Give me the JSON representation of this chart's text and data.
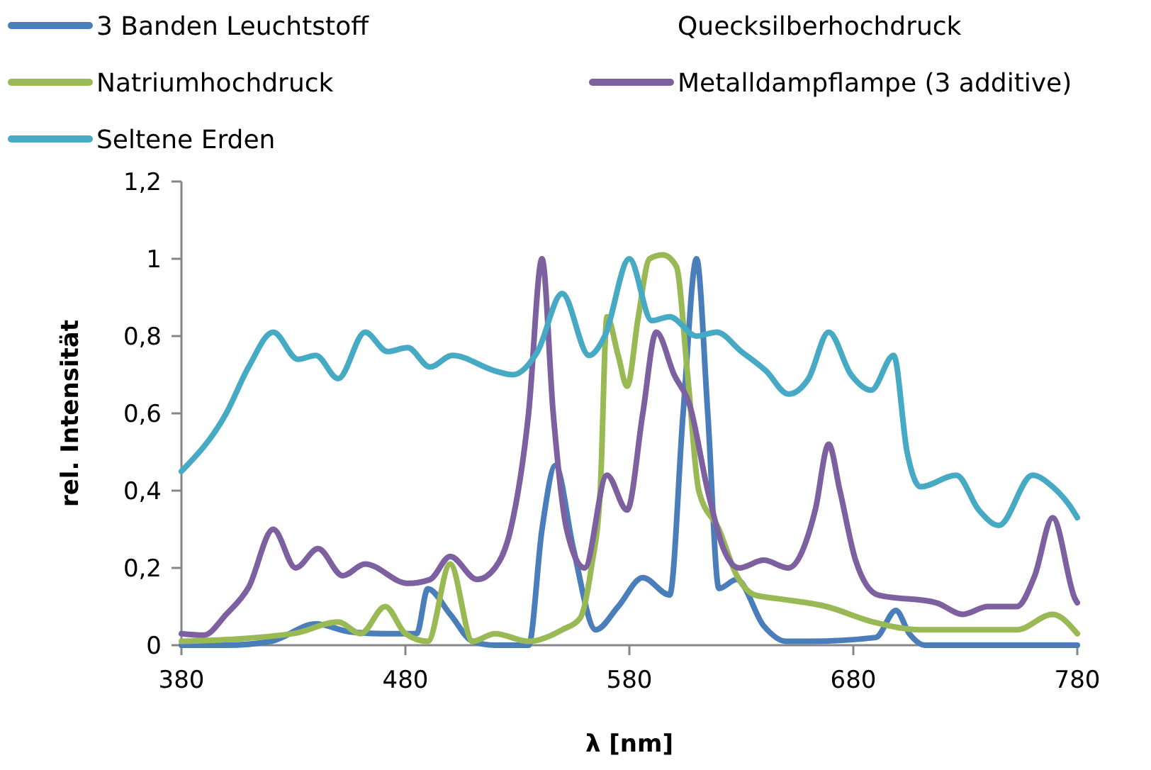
{
  "chart_data": {
    "type": "line",
    "xlabel": "λ [nm]",
    "ylabel": "rel. Intensität",
    "xlim": [
      380,
      780
    ],
    "xticks": [
      380,
      480,
      580,
      680,
      780
    ],
    "ylim": [
      0,
      1.2
    ],
    "yticks": [
      0,
      {
        "value": 0.2,
        "label": "0,2"
      },
      {
        "value": 0.4,
        "label": "0,4"
      },
      {
        "value": 0.6,
        "label": "0,6"
      },
      {
        "value": 0.8,
        "label": "0,8"
      },
      1,
      {
        "value": 1.2,
        "label": "1,2"
      }
    ],
    "grid": false,
    "legend": "top",
    "marker": "none",
    "line_style": "solid",
    "series": [
      {
        "name": "3 Banden Leuchtstoff",
        "color": "#4a7ebb",
        "x": [
          380,
          400,
          420,
          440,
          455,
          470,
          485,
          490,
          500,
          510,
          520,
          535,
          541,
          547,
          555,
          565,
          575,
          586,
          598,
          604,
          610,
          615,
          620,
          628,
          640,
          650,
          660,
          690,
          699,
          705,
          712,
          780
        ],
        "values": [
          0,
          0,
          0.01,
          0.055,
          0.035,
          0.03,
          0.03,
          0.146,
          0.08,
          0.01,
          0,
          0,
          0.3,
          0.465,
          0.25,
          0.04,
          0.1,
          0.175,
          0.13,
          0.6,
          1,
          0.6,
          0.147,
          0.17,
          0.05,
          0.01,
          0.01,
          0.02,
          0.09,
          0.03,
          0,
          0
        ]
      },
      {
        "name": "Quecksilberhochdruck"
      },
      {
        "name": "Natriumhochdruck",
        "color": "#98b954",
        "x": [
          380,
          430,
          450,
          460,
          471,
          480,
          490,
          500,
          510,
          520,
          535,
          550,
          558,
          563,
          567,
          570,
          575,
          579,
          584,
          589,
          595,
          601,
          606,
          611,
          620,
          628,
          636,
          647,
          668,
          689,
          710,
          753,
          769,
          780
        ],
        "values": [
          0.01,
          0.03,
          0.06,
          0.03,
          0.1,
          0.03,
          0.01,
          0.21,
          0.01,
          0.03,
          0.01,
          0.04,
          0.07,
          0.2,
          0.4,
          0.85,
          0.75,
          0.67,
          0.85,
          1,
          1.01,
          0.98,
          0.7,
          0.4,
          0.3,
          0.18,
          0.13,
          0.12,
          0.1,
          0.06,
          0.04,
          0.04,
          0.08,
          0.03
        ]
      },
      {
        "name": "Metalldampflampe (3 additive)",
        "color": "#7d60a0",
        "x": [
          380,
          390,
          400,
          410,
          421,
          431,
          441,
          452,
          462,
          481,
          491,
          500,
          512,
          520,
          527,
          535,
          541,
          546,
          552,
          560,
          570,
          579,
          586,
          592,
          600,
          607,
          615,
          622,
          629,
          640,
          651,
          663,
          669,
          674,
          681,
          691,
          717,
          729,
          740,
          753,
          761,
          769,
          779,
          780
        ],
        "values": [
          0.03,
          0.026,
          0.08,
          0.15,
          0.3,
          0.2,
          0.25,
          0.18,
          0.21,
          0.16,
          0.17,
          0.23,
          0.17,
          0.2,
          0.3,
          0.6,
          1,
          0.6,
          0.3,
          0.2,
          0.44,
          0.35,
          0.6,
          0.81,
          0.7,
          0.62,
          0.4,
          0.25,
          0.2,
          0.22,
          0.2,
          0.35,
          0.52,
          0.4,
          0.22,
          0.13,
          0.11,
          0.08,
          0.1,
          0.1,
          0.18,
          0.33,
          0.12,
          0.11
        ]
      },
      {
        "name": "Seltene Erden",
        "color": "#46aac5",
        "x": [
          380,
          400,
          410,
          421,
          432,
          440,
          450,
          462,
          472,
          481,
          491,
          501,
          520,
          528,
          539,
          550,
          562,
          569,
          580,
          590,
          598,
          610,
          619,
          630,
          641,
          651,
          660,
          669,
          679,
          688,
          698,
          704,
          710,
          726,
          736,
          745,
          760,
          769,
          779,
          780
        ],
        "values": [
          0.45,
          0.6,
          0.72,
          0.81,
          0.74,
          0.75,
          0.69,
          0.81,
          0.76,
          0.77,
          0.72,
          0.75,
          0.71,
          0.7,
          0.76,
          0.91,
          0.75,
          0.8,
          1,
          0.84,
          0.85,
          0.8,
          0.81,
          0.76,
          0.71,
          0.65,
          0.69,
          0.81,
          0.7,
          0.66,
          0.75,
          0.5,
          0.41,
          0.44,
          0.35,
          0.31,
          0.44,
          0.41,
          0.34,
          0.33
        ]
      }
    ]
  }
}
